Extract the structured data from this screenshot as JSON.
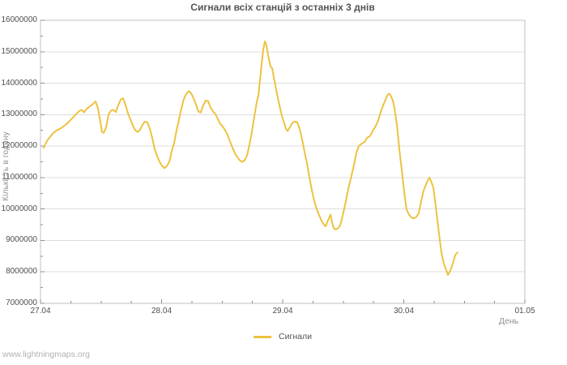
{
  "watermark": "www.lightningmaps.org",
  "legend": {
    "items": [
      {
        "label": "Сигнали",
        "color": "#edc240"
      }
    ]
  },
  "colors": {
    "line": "#edc240",
    "grid": "#dddddd",
    "border": "#c0c0c0",
    "tick": "#8f8f8f",
    "tick_label": "#4f4f4f",
    "axis_title": "#909090",
    "title": "#545454",
    "watermark": "#b2b2b2",
    "background": "#ffffff"
  },
  "chart_data": {
    "type": "line",
    "title": "Сигнали всіх станцій з останніх 3 днів",
    "xlabel": "День",
    "ylabel": "Кількість в годину",
    "grid": "horizontal-only",
    "legend_position": "bottom-center",
    "xlim": [
      0,
      4
    ],
    "ylim": [
      7000000,
      16000000
    ],
    "x_minor_step": 0.25,
    "y_minor_step": 500000,
    "x_ticks": [
      [
        0,
        "27.04"
      ],
      [
        1,
        "28.04"
      ],
      [
        2,
        "29.04"
      ],
      [
        3,
        "30.04"
      ],
      [
        4,
        "01.05"
      ]
    ],
    "y_ticks": [
      [
        7000000,
        "7000000"
      ],
      [
        8000000,
        "8000000"
      ],
      [
        9000000,
        "9000000"
      ],
      [
        10000000,
        "10000000"
      ],
      [
        11000000,
        "11000000"
      ],
      [
        12000000,
        "12000000"
      ],
      [
        13000000,
        "13000000"
      ],
      [
        14000000,
        "14000000"
      ],
      [
        15000000,
        "15000000"
      ],
      [
        16000000,
        "16000000"
      ]
    ],
    "series": [
      {
        "name": "Сигнали",
        "color": "#edc240",
        "x_unit": "days_after_27_04",
        "points": [
          [
            0.027,
            11950000
          ],
          [
            0.054,
            12170000
          ],
          [
            0.08,
            12300000
          ],
          [
            0.107,
            12420000
          ],
          [
            0.134,
            12500000
          ],
          [
            0.161,
            12550000
          ],
          [
            0.187,
            12620000
          ],
          [
            0.214,
            12700000
          ],
          [
            0.241,
            12800000
          ],
          [
            0.268,
            12910000
          ],
          [
            0.294,
            13020000
          ],
          [
            0.321,
            13120000
          ],
          [
            0.341,
            13150000
          ],
          [
            0.361,
            13070000
          ],
          [
            0.381,
            13190000
          ],
          [
            0.401,
            13240000
          ],
          [
            0.428,
            13320000
          ],
          [
            0.455,
            13420000
          ],
          [
            0.475,
            13200000
          ],
          [
            0.495,
            12750000
          ],
          [
            0.508,
            12450000
          ],
          [
            0.522,
            12420000
          ],
          [
            0.542,
            12600000
          ],
          [
            0.562,
            13000000
          ],
          [
            0.582,
            13130000
          ],
          [
            0.602,
            13150000
          ],
          [
            0.622,
            13080000
          ],
          [
            0.642,
            13300000
          ],
          [
            0.662,
            13480000
          ],
          [
            0.682,
            13520000
          ],
          [
            0.702,
            13320000
          ],
          [
            0.722,
            13050000
          ],
          [
            0.742,
            12850000
          ],
          [
            0.763,
            12650000
          ],
          [
            0.783,
            12500000
          ],
          [
            0.803,
            12450000
          ],
          [
            0.823,
            12520000
          ],
          [
            0.843,
            12680000
          ],
          [
            0.863,
            12780000
          ],
          [
            0.883,
            12750000
          ],
          [
            0.903,
            12550000
          ],
          [
            0.923,
            12250000
          ],
          [
            0.943,
            11900000
          ],
          [
            0.963,
            11680000
          ],
          [
            0.983,
            11500000
          ],
          [
            1.003,
            11380000
          ],
          [
            1.023,
            11300000
          ],
          [
            1.043,
            11360000
          ],
          [
            1.064,
            11500000
          ],
          [
            1.084,
            11850000
          ],
          [
            1.104,
            12100000
          ],
          [
            1.124,
            12500000
          ],
          [
            1.144,
            12850000
          ],
          [
            1.164,
            13200000
          ],
          [
            1.184,
            13500000
          ],
          [
            1.204,
            13660000
          ],
          [
            1.224,
            13750000
          ],
          [
            1.244,
            13680000
          ],
          [
            1.264,
            13520000
          ],
          [
            1.284,
            13320000
          ],
          [
            1.304,
            13100000
          ],
          [
            1.324,
            13070000
          ],
          [
            1.344,
            13300000
          ],
          [
            1.365,
            13450000
          ],
          [
            1.385,
            13420000
          ],
          [
            1.405,
            13220000
          ],
          [
            1.425,
            13100000
          ],
          [
            1.445,
            13020000
          ],
          [
            1.465,
            12850000
          ],
          [
            1.485,
            12700000
          ],
          [
            1.505,
            12620000
          ],
          [
            1.525,
            12500000
          ],
          [
            1.545,
            12350000
          ],
          [
            1.565,
            12150000
          ],
          [
            1.585,
            11950000
          ],
          [
            1.605,
            11780000
          ],
          [
            1.625,
            11650000
          ],
          [
            1.645,
            11550000
          ],
          [
            1.666,
            11500000
          ],
          [
            1.686,
            11550000
          ],
          [
            1.706,
            11700000
          ],
          [
            1.726,
            12050000
          ],
          [
            1.746,
            12450000
          ],
          [
            1.759,
            12800000
          ],
          [
            1.773,
            13100000
          ],
          [
            1.786,
            13400000
          ],
          [
            1.799,
            13600000
          ],
          [
            1.813,
            14100000
          ],
          [
            1.826,
            14600000
          ],
          [
            1.839,
            15050000
          ],
          [
            1.853,
            15330000
          ],
          [
            1.866,
            15200000
          ],
          [
            1.886,
            14750000
          ],
          [
            1.9,
            14520000
          ],
          [
            1.913,
            14480000
          ],
          [
            1.926,
            14200000
          ],
          [
            1.946,
            13800000
          ],
          [
            1.967,
            13400000
          ],
          [
            1.987,
            13050000
          ],
          [
            2.007,
            12800000
          ],
          [
            2.027,
            12550000
          ],
          [
            2.04,
            12480000
          ],
          [
            2.06,
            12600000
          ],
          [
            2.08,
            12740000
          ],
          [
            2.1,
            12780000
          ],
          [
            2.12,
            12760000
          ],
          [
            2.14,
            12550000
          ],
          [
            2.161,
            12200000
          ],
          [
            2.181,
            11800000
          ],
          [
            2.201,
            11450000
          ],
          [
            2.221,
            11000000
          ],
          [
            2.241,
            10600000
          ],
          [
            2.261,
            10250000
          ],
          [
            2.281,
            10000000
          ],
          [
            2.301,
            9800000
          ],
          [
            2.321,
            9620000
          ],
          [
            2.341,
            9500000
          ],
          [
            2.355,
            9450000
          ],
          [
            2.375,
            9650000
          ],
          [
            2.395,
            9820000
          ],
          [
            2.408,
            9550000
          ],
          [
            2.421,
            9400000
          ],
          [
            2.435,
            9350000
          ],
          [
            2.455,
            9380000
          ],
          [
            2.475,
            9480000
          ],
          [
            2.495,
            9780000
          ],
          [
            2.522,
            10250000
          ],
          [
            2.542,
            10640000
          ],
          [
            2.562,
            10950000
          ],
          [
            2.589,
            11420000
          ],
          [
            2.609,
            11790000
          ],
          [
            2.629,
            12000000
          ],
          [
            2.649,
            12070000
          ],
          [
            2.676,
            12130000
          ],
          [
            2.696,
            12260000
          ],
          [
            2.722,
            12320000
          ],
          [
            2.742,
            12470000
          ],
          [
            2.763,
            12600000
          ],
          [
            2.789,
            12820000
          ],
          [
            2.809,
            13070000
          ],
          [
            2.829,
            13290000
          ],
          [
            2.849,
            13470000
          ],
          [
            2.863,
            13600000
          ],
          [
            2.876,
            13670000
          ],
          [
            2.89,
            13620000
          ],
          [
            2.91,
            13450000
          ],
          [
            2.923,
            13200000
          ],
          [
            2.943,
            12680000
          ],
          [
            2.963,
            11900000
          ],
          [
            2.99,
            11020000
          ],
          [
            3.01,
            10330000
          ],
          [
            3.023,
            9990000
          ],
          [
            3.043,
            9820000
          ],
          [
            3.063,
            9730000
          ],
          [
            3.084,
            9700000
          ],
          [
            3.104,
            9750000
          ],
          [
            3.124,
            9870000
          ],
          [
            3.144,
            10250000
          ],
          [
            3.164,
            10590000
          ],
          [
            3.191,
            10850000
          ],
          [
            3.211,
            11000000
          ],
          [
            3.224,
            10900000
          ],
          [
            3.244,
            10680000
          ],
          [
            3.264,
            10080000
          ],
          [
            3.291,
            9210000
          ],
          [
            3.311,
            8610000
          ],
          [
            3.331,
            8260000
          ],
          [
            3.351,
            8050000
          ],
          [
            3.365,
            7900000
          ],
          [
            3.385,
            8050000
          ],
          [
            3.405,
            8260000
          ],
          [
            3.425,
            8540000
          ],
          [
            3.445,
            8620000
          ]
        ]
      }
    ]
  }
}
